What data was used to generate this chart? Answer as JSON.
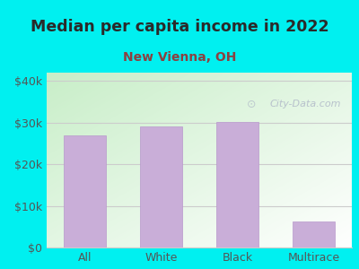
{
  "title": "Median per capita income in 2022",
  "subtitle": "New Vienna, OH",
  "categories": [
    "All",
    "White",
    "Black",
    "Multirace"
  ],
  "values": [
    27000,
    29000,
    30200,
    6200
  ],
  "bar_color": "#c9aed8",
  "bar_edge_color": "#b898cc",
  "background_color": "#00f0f0",
  "plot_bg_top_left": "#c8eec8",
  "plot_bg_bottom_right": "#ffffff",
  "title_color": "#2a2a2a",
  "subtitle_color": "#8b4040",
  "tick_color": "#555555",
  "grid_color": "#cccccc",
  "ylim": [
    0,
    42000
  ],
  "yticks": [
    0,
    10000,
    20000,
    30000,
    40000
  ],
  "ytick_labels": [
    "$0",
    "$10k",
    "$20k",
    "$30k",
    "$40k"
  ],
  "watermark": "City-Data.com",
  "watermark_color": "#b0b8c8"
}
